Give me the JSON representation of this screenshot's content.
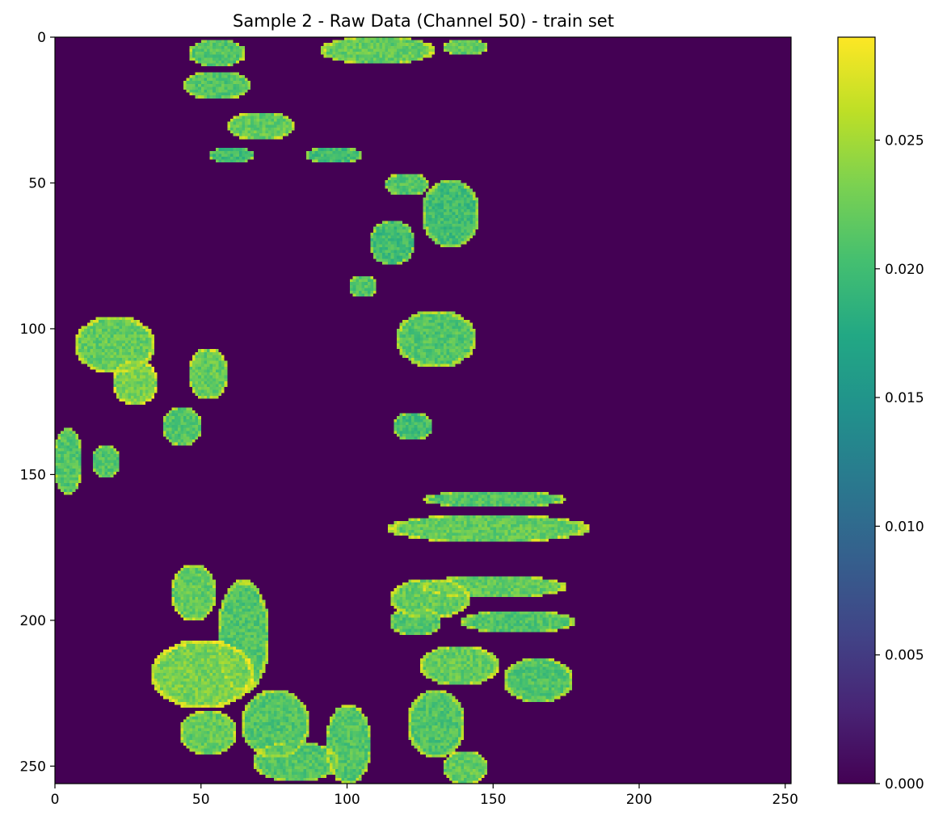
{
  "chart_data": {
    "type": "heatmap",
    "title": "Sample 2 - Raw Data (Channel 50) - train set",
    "xlabel": "",
    "ylabel": "",
    "image_shape": [
      256,
      252
    ],
    "xlim": [
      0,
      252
    ],
    "ylim": [
      256,
      0
    ],
    "y_axis_inverted": true,
    "x_ticks": [
      0,
      50,
      100,
      150,
      200,
      250
    ],
    "y_ticks": [
      0,
      50,
      100,
      150,
      200,
      250
    ],
    "colormap": "viridis",
    "colorbar": {
      "range": [
        0.0,
        0.029
      ],
      "ticks": [
        0.0,
        0.005,
        0.01,
        0.015,
        0.02,
        0.025
      ],
      "tick_labels": [
        "0.000",
        "0.005",
        "0.010",
        "0.015",
        "0.020",
        "0.025"
      ]
    },
    "background_value": 0.0,
    "regions": [
      {
        "cx": 55,
        "cy": 5,
        "rx": 10,
        "ry": 5,
        "v": 0.021
      },
      {
        "cx": 110,
        "cy": 4,
        "rx": 20,
        "ry": 5,
        "v": 0.022
      },
      {
        "cx": 140,
        "cy": 3,
        "rx": 8,
        "ry": 3,
        "v": 0.022
      },
      {
        "cx": 55,
        "cy": 16,
        "rx": 12,
        "ry": 5,
        "v": 0.021
      },
      {
        "cx": 70,
        "cy": 30,
        "rx": 12,
        "ry": 5,
        "v": 0.022
      },
      {
        "cx": 60,
        "cy": 40,
        "rx": 8,
        "ry": 3,
        "v": 0.02
      },
      {
        "cx": 95,
        "cy": 40,
        "rx": 10,
        "ry": 3,
        "v": 0.02
      },
      {
        "cx": 120,
        "cy": 50,
        "rx": 8,
        "ry": 4,
        "v": 0.021
      },
      {
        "cx": 135,
        "cy": 60,
        "rx": 10,
        "ry": 12,
        "v": 0.02
      },
      {
        "cx": 115,
        "cy": 70,
        "rx": 8,
        "ry": 8,
        "v": 0.02
      },
      {
        "cx": 105,
        "cy": 85,
        "rx": 5,
        "ry": 4,
        "v": 0.021
      },
      {
        "cx": 20,
        "cy": 105,
        "rx": 14,
        "ry": 10,
        "v": 0.022
      },
      {
        "cx": 27,
        "cy": 118,
        "rx": 8,
        "ry": 8,
        "v": 0.023
      },
      {
        "cx": 43,
        "cy": 133,
        "rx": 7,
        "ry": 7,
        "v": 0.021
      },
      {
        "cx": 52,
        "cy": 115,
        "rx": 7,
        "ry": 9,
        "v": 0.022
      },
      {
        "cx": 4,
        "cy": 145,
        "rx": 5,
        "ry": 12,
        "v": 0.021
      },
      {
        "cx": 17,
        "cy": 145,
        "rx": 5,
        "ry": 6,
        "v": 0.021
      },
      {
        "cx": 130,
        "cy": 103,
        "rx": 14,
        "ry": 10,
        "v": 0.021
      },
      {
        "cx": 122,
        "cy": 133,
        "rx": 7,
        "ry": 5,
        "v": 0.02
      },
      {
        "cx": 150,
        "cy": 158,
        "rx": 25,
        "ry": 3,
        "v": 0.021
      },
      {
        "cx": 148,
        "cy": 168,
        "rx": 35,
        "ry": 5,
        "v": 0.022
      },
      {
        "cx": 150,
        "cy": 188,
        "rx": 25,
        "ry": 4,
        "v": 0.022
      },
      {
        "cx": 158,
        "cy": 200,
        "rx": 20,
        "ry": 4,
        "v": 0.021
      },
      {
        "cx": 128,
        "cy": 192,
        "rx": 14,
        "ry": 7,
        "v": 0.022
      },
      {
        "cx": 138,
        "cy": 215,
        "rx": 14,
        "ry": 7,
        "v": 0.022
      },
      {
        "cx": 123,
        "cy": 200,
        "rx": 9,
        "ry": 5,
        "v": 0.021
      },
      {
        "cx": 165,
        "cy": 220,
        "rx": 12,
        "ry": 8,
        "v": 0.021
      },
      {
        "cx": 47,
        "cy": 190,
        "rx": 8,
        "ry": 10,
        "v": 0.022
      },
      {
        "cx": 50,
        "cy": 218,
        "rx": 18,
        "ry": 12,
        "v": 0.023
      },
      {
        "cx": 52,
        "cy": 238,
        "rx": 10,
        "ry": 8,
        "v": 0.022
      },
      {
        "cx": 64,
        "cy": 205,
        "rx": 9,
        "ry": 20,
        "v": 0.021
      },
      {
        "cx": 75,
        "cy": 235,
        "rx": 12,
        "ry": 12,
        "v": 0.021
      },
      {
        "cx": 82,
        "cy": 248,
        "rx": 15,
        "ry": 7,
        "v": 0.021
      },
      {
        "cx": 100,
        "cy": 242,
        "rx": 8,
        "ry": 14,
        "v": 0.021
      },
      {
        "cx": 130,
        "cy": 235,
        "rx": 10,
        "ry": 12,
        "v": 0.021
      },
      {
        "cx": 140,
        "cy": 250,
        "rx": 8,
        "ry": 6,
        "v": 0.022
      }
    ]
  }
}
